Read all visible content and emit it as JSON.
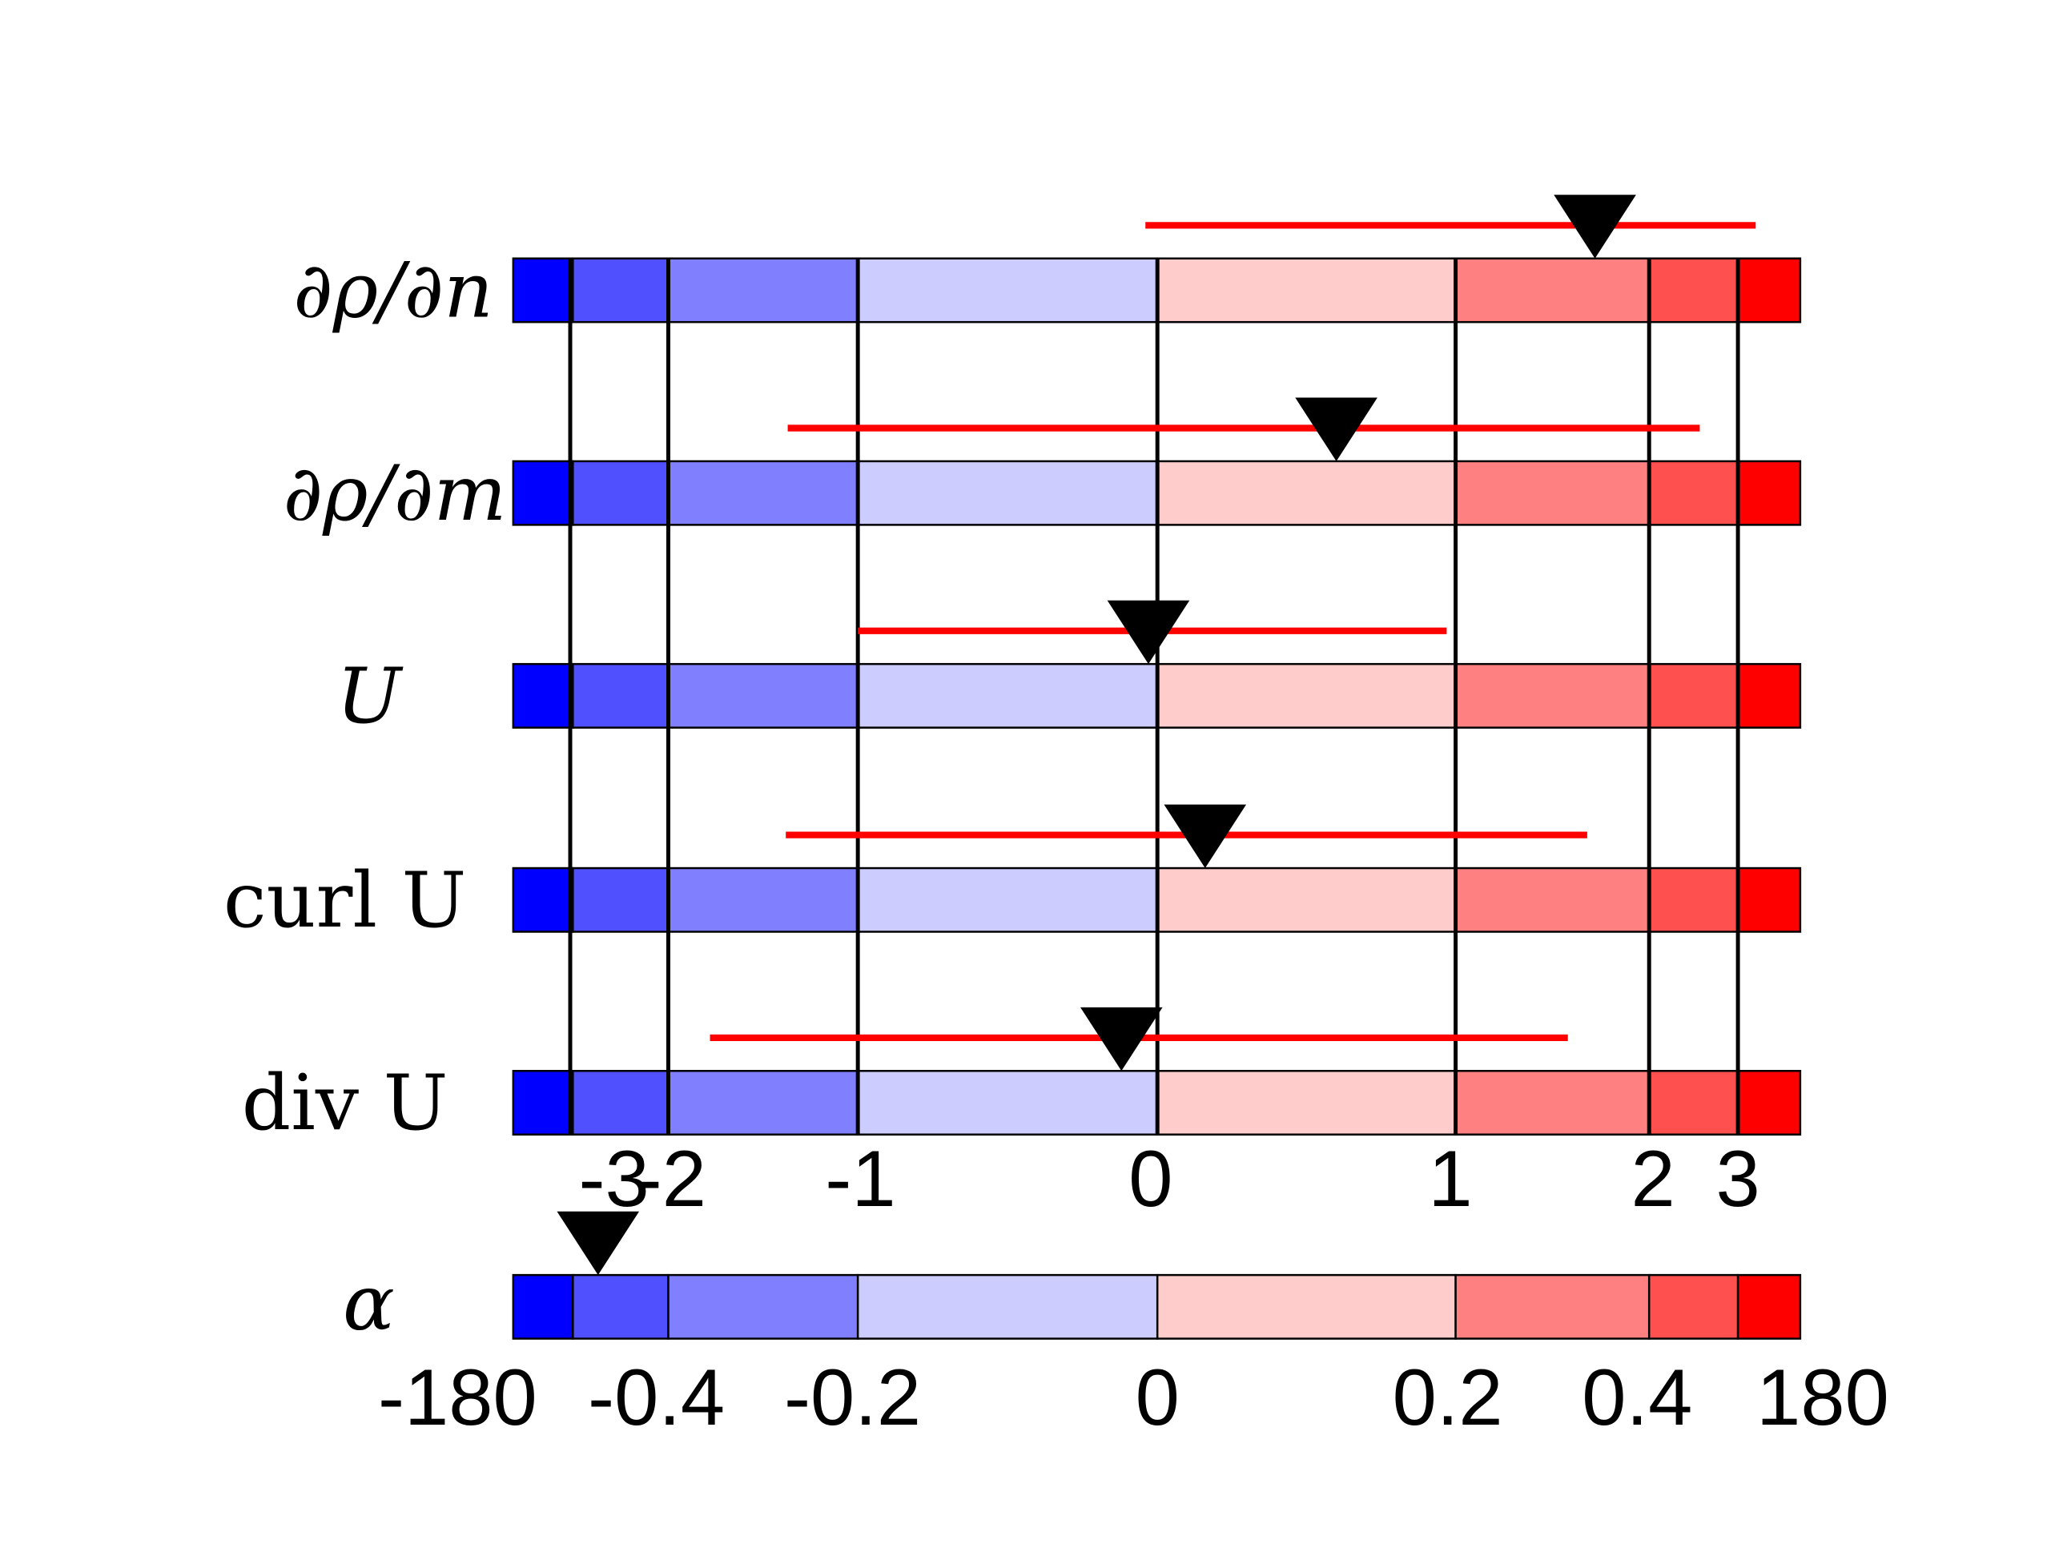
{
  "chart_data": {
    "type": "range-marker",
    "title": "",
    "color_bins": [
      "#0000ff",
      "#5050ff",
      "#8080ff",
      "#ccccff",
      "#ffcccc",
      "#ff8080",
      "#ff5050",
      "#ff0000"
    ],
    "scale_ticks": [
      -3,
      -2,
      -1,
      0,
      1,
      2,
      3
    ],
    "scale_tick_labels": [
      "-3",
      "-2",
      "-1",
      "0",
      "1",
      "2",
      "3"
    ],
    "rows": [
      {
        "label": "∂ρ/∂n",
        "marker": 1.72,
        "range": [
          -0.04,
          3.2
        ]
      },
      {
        "label": "∂ρ/∂m",
        "marker": 0.6,
        "range": [
          -1.37,
          2.57
        ]
      },
      {
        "label": "U",
        "marker": -0.03,
        "range": [
          -1.0,
          0.97
        ]
      },
      {
        "label": "curl U",
        "marker": 0.16,
        "range": [
          -1.38,
          1.68
        ]
      },
      {
        "label": "div U",
        "marker": -0.12,
        "range": [
          -1.78,
          1.58
        ]
      }
    ],
    "alpha": {
      "label": "α",
      "tick_labels": [
        "-180",
        "-0.4",
        "-0.2",
        "0",
        "0.2",
        "0.4",
        "180"
      ],
      "marker_bin": 1,
      "marker_fraction": 0.55
    },
    "range_color": "#ff0000",
    "marker_color": "#000000"
  }
}
